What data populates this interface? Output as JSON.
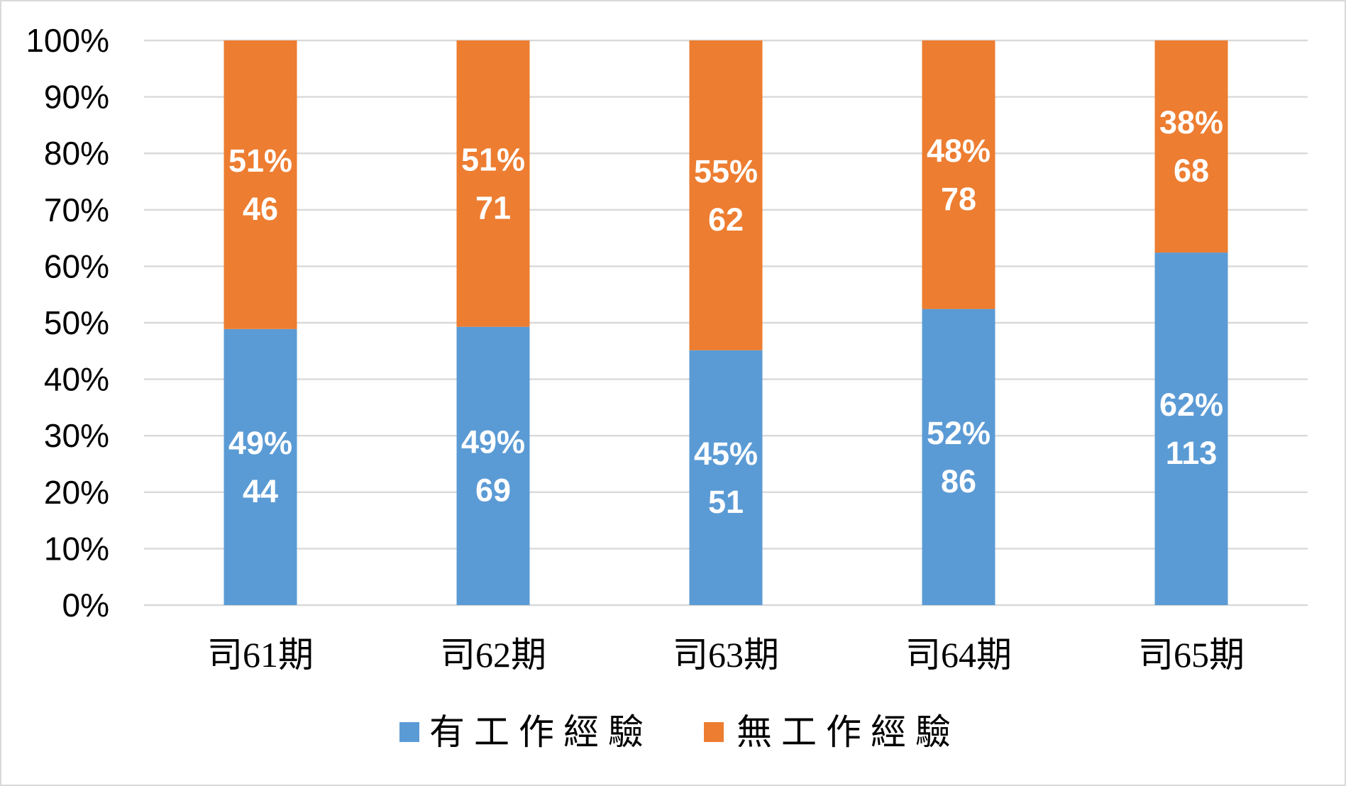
{
  "chart_data": {
    "type": "bar",
    "stacked": "percent",
    "categories": [
      "司61期",
      "司62期",
      "司63期",
      "司64期",
      "司65期"
    ],
    "series": [
      {
        "name": "有工作經驗",
        "color": "#5B9BD5",
        "values": [
          44,
          69,
          51,
          86,
          113
        ],
        "percent_labels": [
          "49%",
          "49%",
          "45%",
          "52%",
          "62%"
        ]
      },
      {
        "name": "無工作經驗",
        "color": "#ED7D31",
        "values": [
          46,
          71,
          62,
          78,
          68
        ],
        "percent_labels": [
          "51%",
          "51%",
          "55%",
          "48%",
          "38%"
        ]
      }
    ],
    "ylim": [
      0,
      100
    ],
    "yticks": [
      "0%",
      "10%",
      "20%",
      "30%",
      "40%",
      "50%",
      "60%",
      "70%",
      "80%",
      "90%",
      "100%"
    ],
    "grid": true,
    "legend": "bottom",
    "grid_color": "#D9D9D9",
    "data_label_color": "#FFFFFF",
    "border_color": "#D9D9D9"
  }
}
